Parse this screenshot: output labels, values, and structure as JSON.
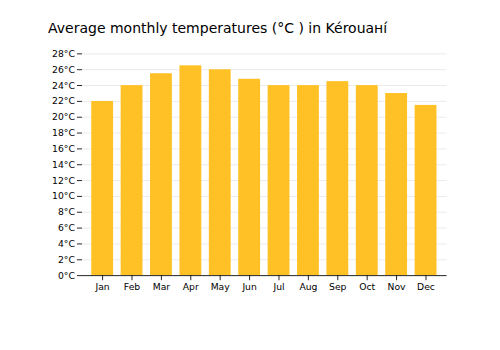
{
  "chart_data": {
    "type": "bar",
    "title": "Average monthly temperatures (°C ) in Kérouані́",
    "categories": [
      "Jan",
      "Feb",
      "Mar",
      "Apr",
      "May",
      "Jun",
      "Jul",
      "Aug",
      "Sep",
      "Oct",
      "Nov",
      "Dec"
    ],
    "values": [
      22.0,
      24.0,
      25.5,
      26.5,
      26.0,
      24.8,
      24.0,
      24.0,
      24.5,
      24.0,
      23.0,
      21.5
    ],
    "color": "#FFC125",
    "ylim": [
      0,
      28
    ],
    "yticks": [
      {
        "value": 0,
        "label": "0°C"
      },
      {
        "value": 2,
        "label": "2°C"
      },
      {
        "value": 4,
        "label": "4°C"
      },
      {
        "value": 6,
        "label": "6°C"
      },
      {
        "value": 8,
        "label": "8°C"
      },
      {
        "value": 10,
        "label": "10°C"
      },
      {
        "value": 12,
        "label": "12°C"
      },
      {
        "value": 14,
        "label": "14°C"
      },
      {
        "value": 16,
        "label": "16°C"
      },
      {
        "value": 18,
        "label": "18°C"
      },
      {
        "value": 20,
        "label": "20°C"
      },
      {
        "value": 22,
        "label": "22°C"
      },
      {
        "value": 24,
        "label": "24°C"
      },
      {
        "value": 26,
        "label": "26°C"
      },
      {
        "value": 28,
        "label": "28°C"
      }
    ],
    "grid": true
  }
}
